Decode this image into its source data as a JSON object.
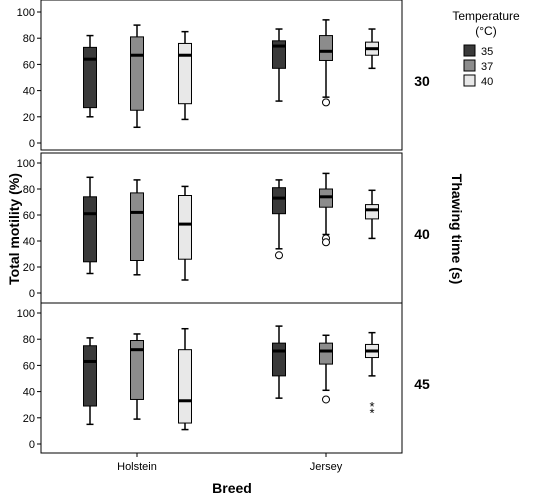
{
  "chart_data": {
    "type": "boxplot",
    "xlabel": "Breed",
    "ylabel": "Total motility (%)",
    "right_label": "Thawing time (s)",
    "categories": [
      "Holstein",
      "Jersey"
    ],
    "ylim": [
      0,
      100
    ],
    "yticks": [
      0,
      20,
      40,
      60,
      80,
      100
    ],
    "legend": {
      "title_line1": "Temperature",
      "title_line2": "(°C)",
      "placement": "top-right",
      "entries": [
        {
          "name": "35",
          "color": "#3a3a3a"
        },
        {
          "name": "37",
          "color": "#8c8c8c"
        },
        {
          "name": "40",
          "color": "#e8e8e8"
        }
      ]
    },
    "panels": [
      {
        "label": "30",
        "boxes": [
          {
            "breed": "Holstein",
            "temp": "35",
            "min": 20,
            "q1": 27,
            "median": 64,
            "q3": 73,
            "max": 82
          },
          {
            "breed": "Holstein",
            "temp": "37",
            "min": 12,
            "q1": 25,
            "median": 67,
            "q3": 81,
            "max": 90
          },
          {
            "breed": "Holstein",
            "temp": "40",
            "min": 18,
            "q1": 30,
            "median": 67,
            "q3": 76,
            "max": 85
          },
          {
            "breed": "Jersey",
            "temp": "35",
            "min": 32,
            "q1": 57,
            "median": 74,
            "q3": 78,
            "max": 87
          },
          {
            "breed": "Jersey",
            "temp": "37",
            "min": 35,
            "q1": 63,
            "median": 70,
            "q3": 82,
            "max": 94,
            "outliers": [
              31
            ]
          },
          {
            "breed": "Jersey",
            "temp": "40",
            "min": 57,
            "q1": 67,
            "median": 72,
            "q3": 77,
            "max": 87
          }
        ]
      },
      {
        "label": "40",
        "boxes": [
          {
            "breed": "Holstein",
            "temp": "35",
            "min": 15,
            "q1": 24,
            "median": 61,
            "q3": 74,
            "max": 89
          },
          {
            "breed": "Holstein",
            "temp": "37",
            "min": 14,
            "q1": 25,
            "median": 62,
            "q3": 77,
            "max": 87
          },
          {
            "breed": "Holstein",
            "temp": "40",
            "min": 10,
            "q1": 26,
            "median": 53,
            "q3": 75,
            "max": 82
          },
          {
            "breed": "Jersey",
            "temp": "35",
            "min": 34,
            "q1": 61,
            "median": 73,
            "q3": 81,
            "max": 87,
            "outliers": [
              29
            ]
          },
          {
            "breed": "Jersey",
            "temp": "37",
            "min": 45,
            "q1": 66,
            "median": 74,
            "q3": 80,
            "max": 92,
            "outliers": [
              42,
              39
            ]
          },
          {
            "breed": "Jersey",
            "temp": "40",
            "min": 42,
            "q1": 57,
            "median": 64,
            "q3": 68,
            "max": 79
          }
        ]
      },
      {
        "label": "45",
        "boxes": [
          {
            "breed": "Holstein",
            "temp": "35",
            "min": 15,
            "q1": 29,
            "median": 63,
            "q3": 75,
            "max": 81
          },
          {
            "breed": "Holstein",
            "temp": "37",
            "min": 19,
            "q1": 34,
            "median": 72,
            "q3": 79,
            "max": 84
          },
          {
            "breed": "Holstein",
            "temp": "40",
            "min": 11,
            "q1": 16,
            "median": 33,
            "q3": 72,
            "max": 88
          },
          {
            "breed": "Jersey",
            "temp": "35",
            "min": 35,
            "q1": 52,
            "median": 71,
            "q3": 77,
            "max": 90
          },
          {
            "breed": "Jersey",
            "temp": "37",
            "min": 41,
            "q1": 61,
            "median": 71,
            "q3": 77,
            "max": 83,
            "outliers": [
              34
            ]
          },
          {
            "breed": "Jersey",
            "temp": "40",
            "min": 52,
            "q1": 66,
            "median": 71,
            "q3": 76,
            "max": 85,
            "extremes": [
              29,
              24
            ]
          }
        ]
      }
    ]
  }
}
